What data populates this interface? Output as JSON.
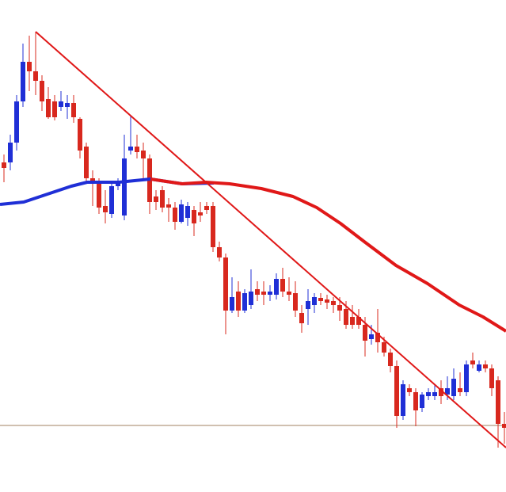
{
  "chart_data": {
    "type": "candlestick",
    "xlim": [
      -0.625,
      79.25
    ],
    "ylim": [
      0,
      621
    ],
    "up_color": "#1f2fd6",
    "down_color": "#d8281e",
    "x": [
      0,
      1,
      2,
      3,
      4,
      5,
      6,
      7,
      8,
      9,
      10,
      11,
      12,
      13,
      14,
      15,
      16,
      17,
      18,
      19,
      20,
      21,
      22,
      23,
      24,
      25,
      26,
      27,
      28,
      29,
      30,
      31,
      32,
      33,
      34,
      35,
      36,
      37,
      38,
      39,
      40,
      41,
      42,
      43,
      44,
      45,
      46,
      47,
      48,
      49,
      50,
      51,
      52,
      53,
      54,
      55,
      56,
      57,
      58,
      59,
      60,
      61,
      62,
      63,
      64,
      65,
      66,
      67,
      68,
      69,
      70,
      71,
      72,
      73,
      74,
      75,
      76,
      77,
      78,
      79
    ],
    "open": [
      416,
      416,
      441,
      493,
      543,
      531,
      519,
      496,
      493,
      486,
      486,
      491,
      471,
      436,
      396,
      391,
      361,
      351,
      386,
      349,
      431,
      436,
      431,
      421,
      373,
      381,
      363,
      359,
      341,
      346,
      356,
      353,
      361,
      361,
      309,
      296,
      229,
      253,
      229,
      236,
      256,
      253,
      249,
      249,
      269,
      253,
      251,
      226,
      231,
      236,
      245,
      243,
      241,
      236,
      231,
      221,
      221,
      211,
      193,
      201,
      189,
      176,
      159,
      96,
      131,
      126,
      106,
      121,
      121,
      131,
      123,
      121,
      131,
      126,
      166,
      153,
      161,
      156,
      141,
      86
    ],
    "high": [
      426,
      451,
      501,
      566,
      576,
      581,
      526,
      511,
      501,
      506,
      501,
      501,
      473,
      441,
      406,
      396,
      381,
      391,
      396,
      451,
      476,
      451,
      441,
      426,
      381,
      386,
      371,
      366,
      369,
      366,
      361,
      366,
      366,
      366,
      316,
      301,
      271,
      266,
      256,
      281,
      266,
      266,
      261,
      276,
      283,
      271,
      266,
      236,
      256,
      251,
      251,
      249,
      246,
      246,
      241,
      236,
      231,
      221,
      211,
      231,
      196,
      181,
      166,
      141,
      136,
      131,
      126,
      131,
      136,
      141,
      146,
      156,
      151,
      166,
      176,
      166,
      166,
      161,
      146,
      101
    ],
    "low": [
      391,
      406,
      431,
      486,
      506,
      501,
      481,
      471,
      469,
      481,
      471,
      466,
      421,
      391,
      361,
      351,
      339,
      346,
      381,
      343,
      426,
      421,
      396,
      351,
      356,
      353,
      341,
      331,
      339,
      336,
      323,
      341,
      351,
      303,
      291,
      199,
      226,
      221,
      226,
      231,
      241,
      236,
      241,
      243,
      246,
      241,
      221,
      201,
      211,
      226,
      236,
      231,
      226,
      216,
      206,
      206,
      206,
      171,
      186,
      176,
      171,
      151,
      81,
      91,
      121,
      83,
      101,
      116,
      116,
      111,
      116,
      116,
      121,
      121,
      156,
      151,
      151,
      121,
      56,
      61
    ],
    "close": [
      409,
      441,
      493,
      543,
      531,
      519,
      493,
      473,
      473,
      493,
      491,
      473,
      431,
      396,
      391,
      359,
      353,
      386,
      391,
      421,
      436,
      429,
      421,
      366,
      366,
      359,
      359,
      341,
      363,
      361,
      339,
      349,
      356,
      309,
      296,
      229,
      246,
      229,
      251,
      253,
      249,
      249,
      253,
      269,
      253,
      249,
      229,
      213,
      241,
      246,
      241,
      239,
      236,
      229,
      211,
      211,
      211,
      191,
      199,
      189,
      176,
      159,
      96,
      136,
      126,
      103,
      123,
      126,
      126,
      121,
      131,
      143,
      126,
      161,
      161,
      161,
      156,
      131,
      86,
      81
    ],
    "lines": [
      {
        "color": "#1f2fd6",
        "x": [
          -0.625,
          3.125,
          6.875,
          10.625,
          13.125,
          18.125,
          23.125,
          28.125,
          33.125
        ],
        "values": [
          363,
          366,
          376,
          386,
          391,
          391,
          395,
          389,
          390
        ]
      },
      {
        "color": "#e01818",
        "x": [
          23.125,
          28.125,
          31.875,
          35.625,
          40.625,
          45.625,
          49.375,
          53.125,
          56.875,
          61.875,
          66.875,
          71.875,
          75.625,
          79.25
        ],
        "values": [
          395,
          389,
          391,
          389,
          383,
          373,
          359,
          339,
          316,
          286,
          263,
          236,
          221,
          203
        ]
      },
      {
        "color": "#e01818",
        "x": [
          5,
          79.25
        ],
        "values": [
          581,
          56
        ]
      }
    ],
    "hlines": [
      {
        "color": "#a08060",
        "value": 84
      }
    ]
  }
}
